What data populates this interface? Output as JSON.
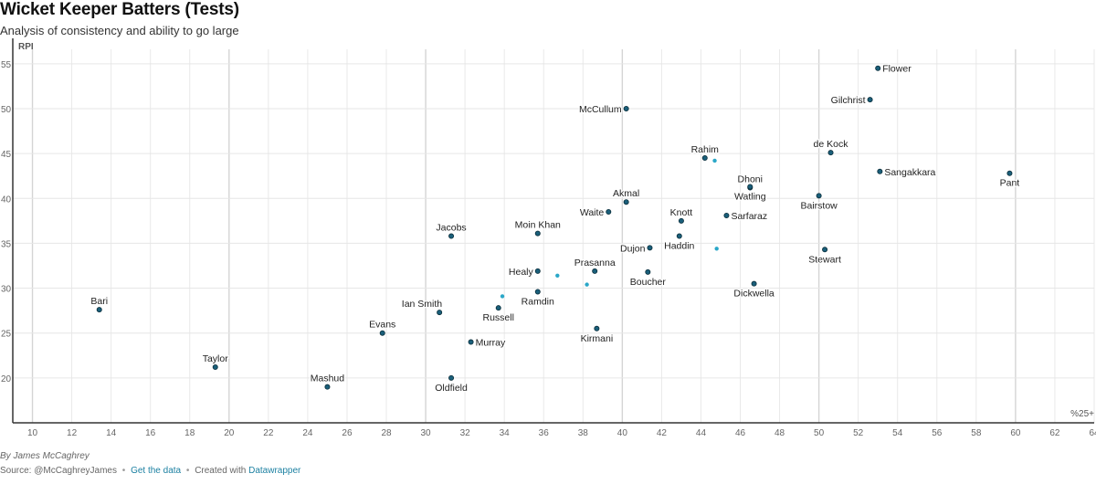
{
  "header": {
    "title": "Wicket Keeper Batters (Tests)",
    "subtitle": "Analysis of consistency and ability to go large"
  },
  "footer": {
    "byline": "By James McCaghrey",
    "source_prefix": "Source: @McCaghreyJames",
    "get_data_label": "Get the data",
    "created_with": "Created with",
    "tool_label": "Datawrapper",
    "separator": "•"
  },
  "chart_data": {
    "type": "scatter",
    "title": "Wicket Keeper Batters (Tests)",
    "subtitle": "Analysis of consistency and ability to go large",
    "xlabel": "%25+",
    "ylabel": "RPI",
    "xlim": [
      9,
      64
    ],
    "ylim": [
      15,
      56
    ],
    "x_ticks": [
      10,
      12,
      14,
      16,
      18,
      20,
      22,
      24,
      26,
      28,
      30,
      32,
      34,
      36,
      38,
      40,
      42,
      44,
      46,
      48,
      50,
      52,
      54,
      56,
      58,
      60,
      62,
      64
    ],
    "y_ticks": [
      20,
      25,
      30,
      35,
      40,
      45,
      50,
      55
    ],
    "grid": true,
    "colors": {
      "labeled_point": "#1a5f7a",
      "unlabeled_point": "#2aa7c8",
      "point_stroke": "#0b2e3b"
    },
    "points": [
      {
        "name": "Flower",
        "x": 53.0,
        "y": 54.5,
        "label_pos": "right"
      },
      {
        "name": "Gilchrist",
        "x": 52.6,
        "y": 51.0,
        "label_pos": "left"
      },
      {
        "name": "McCullum",
        "x": 40.2,
        "y": 50.0,
        "label_pos": "left"
      },
      {
        "name": "de Kock",
        "x": 50.6,
        "y": 45.1,
        "label_pos": "above"
      },
      {
        "name": "Rahim",
        "x": 44.2,
        "y": 44.5,
        "label_pos": "above"
      },
      {
        "name": "",
        "x": 44.7,
        "y": 44.2,
        "label_pos": "none"
      },
      {
        "name": "Sangakkara",
        "x": 53.1,
        "y": 43.0,
        "label_pos": "right"
      },
      {
        "name": "Pant",
        "x": 59.7,
        "y": 42.8,
        "label_pos": "below"
      },
      {
        "name": "Dhoni",
        "x": 46.5,
        "y": 41.2,
        "label_pos": "above"
      },
      {
        "name": "Watling",
        "x": 46.5,
        "y": 41.3,
        "label_pos": "below"
      },
      {
        "name": "Bairstow",
        "x": 50.0,
        "y": 40.3,
        "label_pos": "below"
      },
      {
        "name": "Akmal",
        "x": 40.2,
        "y": 39.6,
        "label_pos": "above"
      },
      {
        "name": "Waite",
        "x": 39.3,
        "y": 38.5,
        "label_pos": "left"
      },
      {
        "name": "Knott",
        "x": 43.0,
        "y": 37.5,
        "label_pos": "above"
      },
      {
        "name": "Sarfaraz",
        "x": 45.3,
        "y": 38.1,
        "label_pos": "right"
      },
      {
        "name": "Moin Khan",
        "x": 35.7,
        "y": 36.1,
        "label_pos": "above"
      },
      {
        "name": "Jacobs",
        "x": 31.3,
        "y": 35.8,
        "label_pos": "above"
      },
      {
        "name": "Haddin",
        "x": 42.9,
        "y": 35.8,
        "label_pos": "below"
      },
      {
        "name": "Dujon",
        "x": 41.4,
        "y": 34.5,
        "label_pos": "left"
      },
      {
        "name": "",
        "x": 44.8,
        "y": 34.4,
        "label_pos": "none"
      },
      {
        "name": "Stewart",
        "x": 50.3,
        "y": 34.3,
        "label_pos": "below"
      },
      {
        "name": "Prasanna",
        "x": 38.6,
        "y": 31.9,
        "label_pos": "above"
      },
      {
        "name": "Healy",
        "x": 35.7,
        "y": 31.9,
        "label_pos": "left"
      },
      {
        "name": "",
        "x": 36.7,
        "y": 31.4,
        "label_pos": "none"
      },
      {
        "name": "Boucher",
        "x": 41.3,
        "y": 31.8,
        "label_pos": "below"
      },
      {
        "name": "",
        "x": 38.2,
        "y": 30.4,
        "label_pos": "none"
      },
      {
        "name": "Dickwella",
        "x": 46.7,
        "y": 30.5,
        "label_pos": "below"
      },
      {
        "name": "Ramdin",
        "x": 35.7,
        "y": 29.6,
        "label_pos": "below"
      },
      {
        "name": "",
        "x": 33.9,
        "y": 29.1,
        "label_pos": "none"
      },
      {
        "name": "Ian Smith",
        "x": 30.7,
        "y": 27.3,
        "label_pos": "above-left"
      },
      {
        "name": "Russell",
        "x": 33.7,
        "y": 27.8,
        "label_pos": "below"
      },
      {
        "name": "Bari",
        "x": 13.4,
        "y": 27.6,
        "label_pos": "above"
      },
      {
        "name": "Evans",
        "x": 27.8,
        "y": 25.0,
        "label_pos": "above"
      },
      {
        "name": "Kirmani",
        "x": 38.7,
        "y": 25.5,
        "label_pos": "below"
      },
      {
        "name": "Murray",
        "x": 32.3,
        "y": 24.0,
        "label_pos": "right"
      },
      {
        "name": "Taylor",
        "x": 19.3,
        "y": 21.2,
        "label_pos": "above"
      },
      {
        "name": "Mashud",
        "x": 25.0,
        "y": 19.0,
        "label_pos": "above"
      },
      {
        "name": "Oldfield",
        "x": 31.3,
        "y": 20.0,
        "label_pos": "below"
      }
    ]
  }
}
